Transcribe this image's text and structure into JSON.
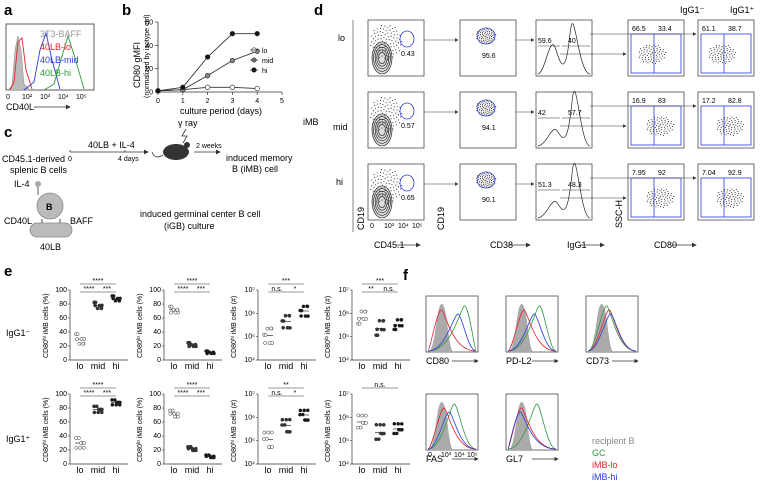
{
  "panels": {
    "a": "a",
    "b": "b",
    "c": "c",
    "d": "d",
    "e": "e",
    "f": "f"
  },
  "panel_a": {
    "legend": [
      "3T3-BAFF",
      "40LB-lo",
      "40LB-mid",
      "40LB-hi"
    ],
    "legend_colors": [
      "#999999",
      "#e8212b",
      "#2b3bd6",
      "#2a9a3a"
    ],
    "xlabel": "CD40L",
    "ticks": [
      "0",
      "10²",
      "10³",
      "10⁴",
      "10⁵"
    ]
  },
  "chart_data": {
    "type": "line",
    "title": "",
    "xlabel": "culture period (days)",
    "ylabel": "CD80 gMFI",
    "ylabel_sub": "(normalized by isotype ctrl)",
    "x": [
      0,
      1,
      2,
      3,
      4
    ],
    "xticks": [
      "0",
      "1",
      "2",
      "3",
      "4",
      "5"
    ],
    "yticks": [
      "0",
      "20",
      "40",
      "60"
    ],
    "ylim": [
      0,
      60
    ],
    "xlim": [
      0,
      5
    ],
    "series": [
      {
        "name": "lo",
        "values": [
          1,
          2,
          4,
          4,
          3
        ]
      },
      {
        "name": "mid",
        "values": [
          1,
          2,
          14,
          27,
          35
        ]
      },
      {
        "name": "hi",
        "values": [
          1,
          4,
          30,
          50,
          50
        ]
      }
    ]
  },
  "panel_c": {
    "source": "CD45.1-derived",
    "source2": "splenic B cells",
    "culture": "40LB + IL-4",
    "t0": "0",
    "t4": "4 days",
    "ray": "γ ray",
    "weeks": "2 weeks",
    "result1": "induced memory",
    "result2": "B (iMB) cell",
    "il4": "IL-4",
    "b": "B",
    "cd40l": "CD40L",
    "baff": "BAFF",
    "feeder": "40LB",
    "igb1": "induced germinal center B cell",
    "igb2": "(iGB) culture"
  },
  "panel_d": {
    "rowgroup": "iMB",
    "rows": [
      "lo",
      "mid",
      "hi"
    ],
    "col_headers": [
      "IgG1⁻",
      "IgG1⁺"
    ],
    "xlabels": [
      "CD45.1",
      "CD38",
      "IgG1",
      "CD80",
      ""
    ],
    "ylabels": [
      "CD19",
      "CD19",
      "",
      "SSC-H",
      ""
    ],
    "tick_labels": [
      "0",
      "10³",
      "10⁴",
      "10⁵"
    ],
    "gate1": [
      "0.43",
      "0.57",
      "0.65"
    ],
    "gate2": [
      "95.6",
      "94.1",
      "90.1"
    ],
    "hist": [
      [
        "59.6",
        "40"
      ],
      [
        "42",
        "57.7"
      ],
      [
        "51.3",
        "48.3"
      ]
    ],
    "igg1neg": [
      [
        "66.5",
        "33.4"
      ],
      [
        "16.9",
        "83"
      ],
      [
        "7.95",
        "92"
      ]
    ],
    "igg1pos": [
      [
        "61.1",
        "38.7"
      ],
      [
        "17.2",
        "82.8"
      ],
      [
        "7.04",
        "92.9"
      ]
    ]
  },
  "panel_e": {
    "row_labels": [
      "IgG1⁻",
      "IgG1⁺"
    ],
    "groups": [
      "lo",
      "mid",
      "hi"
    ],
    "ylabels": [
      "CD80hi iMB cells (%)",
      "CD80lo iMB cells (%)",
      "CD80hi iMB cells (#)",
      "CD80lo iMB cells (#)"
    ],
    "ylab_main": [
      "CD80",
      "CD80",
      "CD80",
      "CD80"
    ],
    "ylab_sup": [
      "hi",
      "lo",
      "hi",
      "lo"
    ],
    "ylab_rest": [
      " iMB cells (%)",
      " iMB cells (%)",
      " iMB cells (#)",
      " iMB cells (#)"
    ],
    "pct_ticks": [
      "0",
      "20",
      "40",
      "60",
      "80",
      "100"
    ],
    "num_ticks": [
      "10⁴",
      "10⁵",
      "10⁶",
      "10⁷"
    ],
    "sig": [
      [
        [
          "****",
          "****",
          "***"
        ],
        [
          "****",
          "****",
          "***"
        ],
        [
          "***",
          "n.s.",
          "*"
        ],
        [
          "***",
          "**",
          "n.s."
        ]
      ],
      [
        [
          "****",
          "****",
          "***"
        ],
        [
          "****",
          "****",
          "***"
        ],
        [
          "**",
          "n.s.",
          "*"
        ],
        [
          "n.s.",
          "",
          ""
        ]
      ]
    ]
  },
  "panel_f": {
    "markers": [
      "CD80",
      "PD-L2",
      "CD73",
      "FAS",
      "GL7"
    ],
    "legend": [
      "recipient B",
      "GC",
      "iMB-lo",
      "iMB-hi"
    ],
    "legend_colors": [
      "#999999",
      "#2a9a3a",
      "#e8212b",
      "#2b3bd6"
    ],
    "ticks": [
      "0",
      "10³",
      "10⁴",
      "10⁵"
    ]
  }
}
